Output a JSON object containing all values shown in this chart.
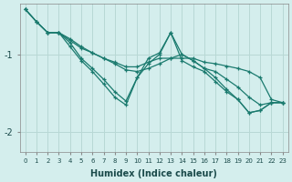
{
  "xlabel": "Humidex (Indice chaleur)",
  "ylabel": "",
  "bg_color": "#d4eeed",
  "grid_color": "#b8d8d5",
  "line_color": "#1a7a6e",
  "xlim": [
    -0.5,
    23.5
  ],
  "ylim": [
    -2.25,
    -0.35
  ],
  "yticks": [
    -2.0,
    -1.0
  ],
  "xticks": [
    0,
    1,
    2,
    3,
    4,
    5,
    6,
    7,
    8,
    9,
    10,
    11,
    12,
    13,
    14,
    15,
    16,
    17,
    18,
    19,
    20,
    21,
    22,
    23
  ],
  "series": [
    {
      "x": [
        0,
        1,
        2,
        3,
        4,
        5,
        6,
        7,
        8,
        9,
        10,
        11,
        12,
        13,
        14,
        15,
        16,
        17,
        18,
        19,
        20,
        21,
        22,
        23
      ],
      "y": [
        -0.42,
        -0.58,
        -0.72,
        -0.72,
        -0.82,
        -0.92,
        -0.98,
        -1.05,
        -1.1,
        -1.16,
        -1.16,
        -1.1,
        -1.05,
        -1.05,
        -1.05,
        -1.05,
        -1.1,
        -1.12,
        -1.15,
        -1.18,
        -1.22,
        -1.3,
        -1.58,
        -1.62
      ]
    },
    {
      "x": [
        0,
        1,
        2,
        3,
        4,
        5,
        6,
        7,
        8,
        9,
        10,
        11,
        12,
        13,
        14,
        15,
        16,
        17,
        18,
        19,
        20,
        21,
        22,
        23
      ],
      "y": [
        -0.42,
        -0.58,
        -0.72,
        -0.72,
        -0.9,
        -1.08,
        -1.22,
        -1.38,
        -1.55,
        -1.65,
        -1.3,
        -1.05,
        -0.98,
        -0.72,
        -1.08,
        -1.16,
        -1.22,
        -1.35,
        -1.48,
        -1.58,
        -1.75,
        -1.72,
        -1.62,
        -1.62
      ]
    },
    {
      "x": [
        0,
        1,
        2,
        3,
        4,
        5,
        6,
        7,
        8,
        9,
        10,
        11,
        12,
        13,
        14,
        15,
        16,
        17,
        18,
        19,
        20,
        21,
        22,
        23
      ],
      "y": [
        -0.42,
        -0.58,
        -0.72,
        -0.72,
        -0.85,
        -1.05,
        -1.18,
        -1.32,
        -1.48,
        -1.6,
        -1.3,
        -1.12,
        -1.0,
        -0.72,
        -1.0,
        -1.08,
        -1.18,
        -1.3,
        -1.45,
        -1.58,
        -1.75,
        -1.72,
        -1.62,
        -1.62
      ]
    },
    {
      "x": [
        2,
        3,
        4,
        5,
        6,
        7,
        8,
        9,
        10,
        11,
        12,
        13,
        14,
        15,
        16,
        17,
        18,
        19,
        20,
        21,
        22,
        23
      ],
      "y": [
        -0.72,
        -0.72,
        -0.8,
        -0.9,
        -0.98,
        -1.05,
        -1.12,
        -1.2,
        -1.22,
        -1.18,
        -1.12,
        -1.05,
        -1.0,
        -1.08,
        -1.18,
        -1.22,
        -1.32,
        -1.42,
        -1.55,
        -1.65,
        -1.62,
        -1.62
      ]
    }
  ]
}
